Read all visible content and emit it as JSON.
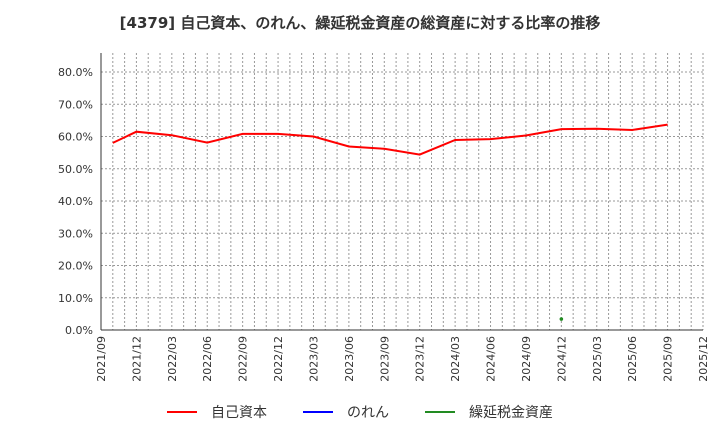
{
  "title": "[4379]  自己資本、のれん、繰延税金資産の総資産に対する比率の推移",
  "colors": {
    "equity": "#ff0000",
    "goodwill": "#0000ff",
    "dta": "#228b22"
  },
  "legend": [
    {
      "label": "自己資本",
      "color": "#ff0000"
    },
    {
      "label": "のれん",
      "color": "#0000ff"
    },
    {
      "label": "繰延税金資産",
      "color": "#228b22"
    }
  ],
  "chart_data": {
    "type": "line",
    "title": "[4379]  自己資本、のれん、繰延税金資産の総資産に対する比率の推移",
    "xlabel": "",
    "ylabel": "",
    "ylim": [
      0,
      85
    ],
    "yticks": [
      "0.0%",
      "10.0%",
      "20.0%",
      "30.0%",
      "40.0%",
      "50.0%",
      "60.0%",
      "70.0%",
      "80.0%"
    ],
    "xticks": [
      "2021/09",
      "2021/12",
      "2022/03",
      "2022/06",
      "2022/09",
      "2022/12",
      "2023/03",
      "2023/06",
      "2023/09",
      "2023/12",
      "2024/03",
      "2024/06",
      "2024/09",
      "2024/12",
      "2025/03",
      "2025/06",
      "2025/09",
      "2025/12"
    ],
    "grid": true,
    "legend_position": "bottom",
    "series": [
      {
        "name": "自己資本",
        "color": "#ff0000",
        "x": [
          "2021/10",
          "2021/12",
          "2022/03",
          "2022/06",
          "2022/09",
          "2022/12",
          "2023/03",
          "2023/06",
          "2023/09",
          "2023/12",
          "2024/03",
          "2024/06",
          "2024/09",
          "2024/12",
          "2025/03",
          "2025/06",
          "2025/09"
        ],
        "values": [
          58.0,
          61.5,
          60.4,
          58.1,
          60.8,
          60.8,
          60.0,
          56.9,
          56.2,
          54.4,
          58.9,
          59.2,
          60.3,
          62.3,
          62.4,
          62.0,
          63.7
        ]
      },
      {
        "name": "のれん",
        "color": "#0000ff",
        "x": [],
        "values": []
      },
      {
        "name": "繰延税金資産",
        "color": "#228b22",
        "x": [
          "2024/12"
        ],
        "values": [
          3.4
        ]
      }
    ]
  }
}
